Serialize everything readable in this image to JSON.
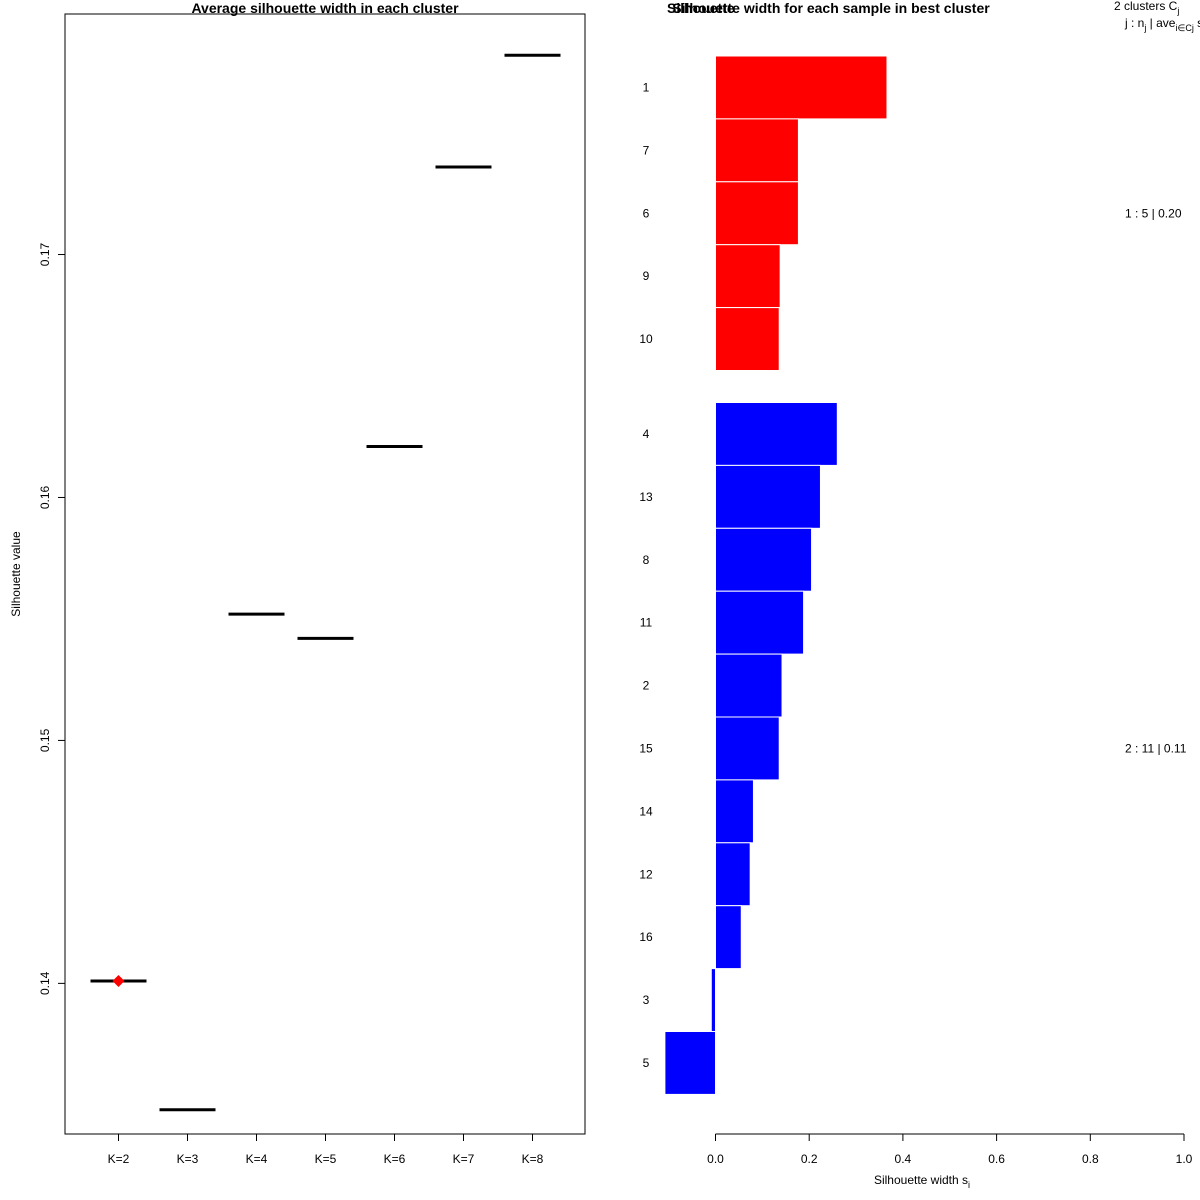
{
  "chart_data": [
    {
      "type": "scatter",
      "title": "Average silhouette width in each cluster",
      "xlabel": "",
      "ylabel": "Silhouette value",
      "categories": [
        "K=2",
        "K=3",
        "K=4",
        "K=5",
        "K=6",
        "K=7",
        "K=8"
      ],
      "values": [
        0.1401,
        0.1348,
        0.1552,
        0.1542,
        0.1621,
        0.1736,
        0.1782
      ],
      "best_index": 0,
      "best_marker_color": "#ff0000",
      "ylim": [
        0.1338,
        0.1799
      ],
      "yticks": [
        "0.14",
        "0.15",
        "0.16",
        "0.17"
      ],
      "grid": false
    },
    {
      "type": "bar",
      "orientation": "horizontal",
      "title": "Silhouette width for each sample in best cluster",
      "overlapping_title_text": "Silhouette",
      "xlabel": "Silhouette width s",
      "xlabel_subscript": "i",
      "xlim": [
        0,
        1
      ],
      "xticks": [
        "0.0",
        "0.2",
        "0.4",
        "0.6",
        "0.8",
        "1.0"
      ],
      "legend_header": {
        "line1": "2  clusters  C",
        "line1_sub": "j",
        "line2a": "j :  n",
        "line2_sub1": "j",
        "line2b": " | ave",
        "line2_sub2": "i∈Cj",
        "line2c": "  s"
      },
      "clusters": [
        {
          "id": 1,
          "color": "#ff0000",
          "summary": "1 :  5  |  0.20",
          "samples": [
            "1",
            "7",
            "6",
            "9",
            "10"
          ],
          "values": [
            0.366,
            0.177,
            0.177,
            0.138,
            0.136
          ]
        },
        {
          "id": 2,
          "color": "#0000ff",
          "summary": "2 :  11  |  0.11",
          "samples": [
            "4",
            "13",
            "8",
            "11",
            "2",
            "15",
            "14",
            "12",
            "16",
            "3",
            "5"
          ],
          "values": [
            0.26,
            0.224,
            0.205,
            0.188,
            0.142,
            0.136,
            0.081,
            0.074,
            0.055,
            -0.009,
            -0.108
          ]
        }
      ]
    }
  ]
}
